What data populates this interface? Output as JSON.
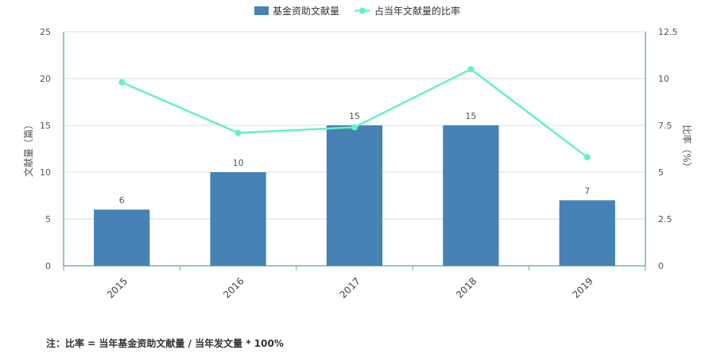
{
  "chart_data": {
    "type": "bar",
    "categories": [
      "2015",
      "2016",
      "2017",
      "2018",
      "2019"
    ],
    "series": [
      {
        "name": "基金资助文献量",
        "type": "bar",
        "axis": "left",
        "color": "#4682b4",
        "values": [
          6,
          10,
          15,
          15,
          7
        ]
      },
      {
        "name": "占当年文献量的比率",
        "type": "line",
        "axis": "right",
        "color": "#66f0c8",
        "values": [
          9.8,
          7.1,
          7.4,
          10.5,
          5.8
        ]
      }
    ],
    "ylabel_left": "文献量（篇）",
    "ylabel_right": "比率（%）",
    "ylim_left": [
      0,
      25
    ],
    "ylim_right": [
      0,
      12.5
    ],
    "yticks_left": [
      "0",
      "5",
      "10",
      "15",
      "20",
      "25"
    ],
    "yticks_right": [
      "0",
      "2.5",
      "5",
      "7.5",
      "10",
      "12.5"
    ],
    "grid": true,
    "legend_position": "top-center"
  },
  "note": "注：比率 = 当年基金资助文献量 / 当年发文量 * 100%"
}
